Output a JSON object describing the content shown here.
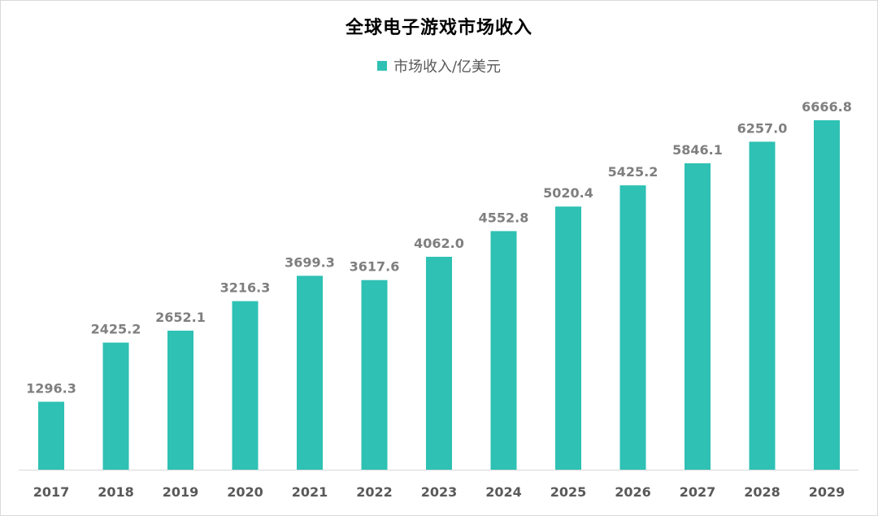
{
  "chart_data": {
    "type": "bar",
    "title": "全球电子游戏市场收入",
    "xlabel": "",
    "ylabel": "",
    "categories": [
      "2017",
      "2018",
      "2019",
      "2020",
      "2021",
      "2022",
      "2023",
      "2024",
      "2025",
      "2026",
      "2027",
      "2028",
      "2029"
    ],
    "series": [
      {
        "name": "市场收入/亿美元",
        "values": [
          1296.3,
          2425.2,
          2652.1,
          3216.3,
          3699.3,
          3617.6,
          4062.0,
          4552.8,
          5020.4,
          5425.2,
          5846.1,
          6257.0,
          6666.8
        ],
        "labels": [
          "1296.3",
          "2425.2",
          "2652.1",
          "3216.3",
          "3699.3",
          "3617.6",
          "4062.0",
          "4552.8",
          "5020.4",
          "5425.2",
          "5846.1",
          "6257.0",
          "6666.8"
        ],
        "color": "#2ec1b4"
      }
    ],
    "ylim": [
      0,
      7000
    ],
    "grid": false,
    "legend_position": "top-center"
  }
}
